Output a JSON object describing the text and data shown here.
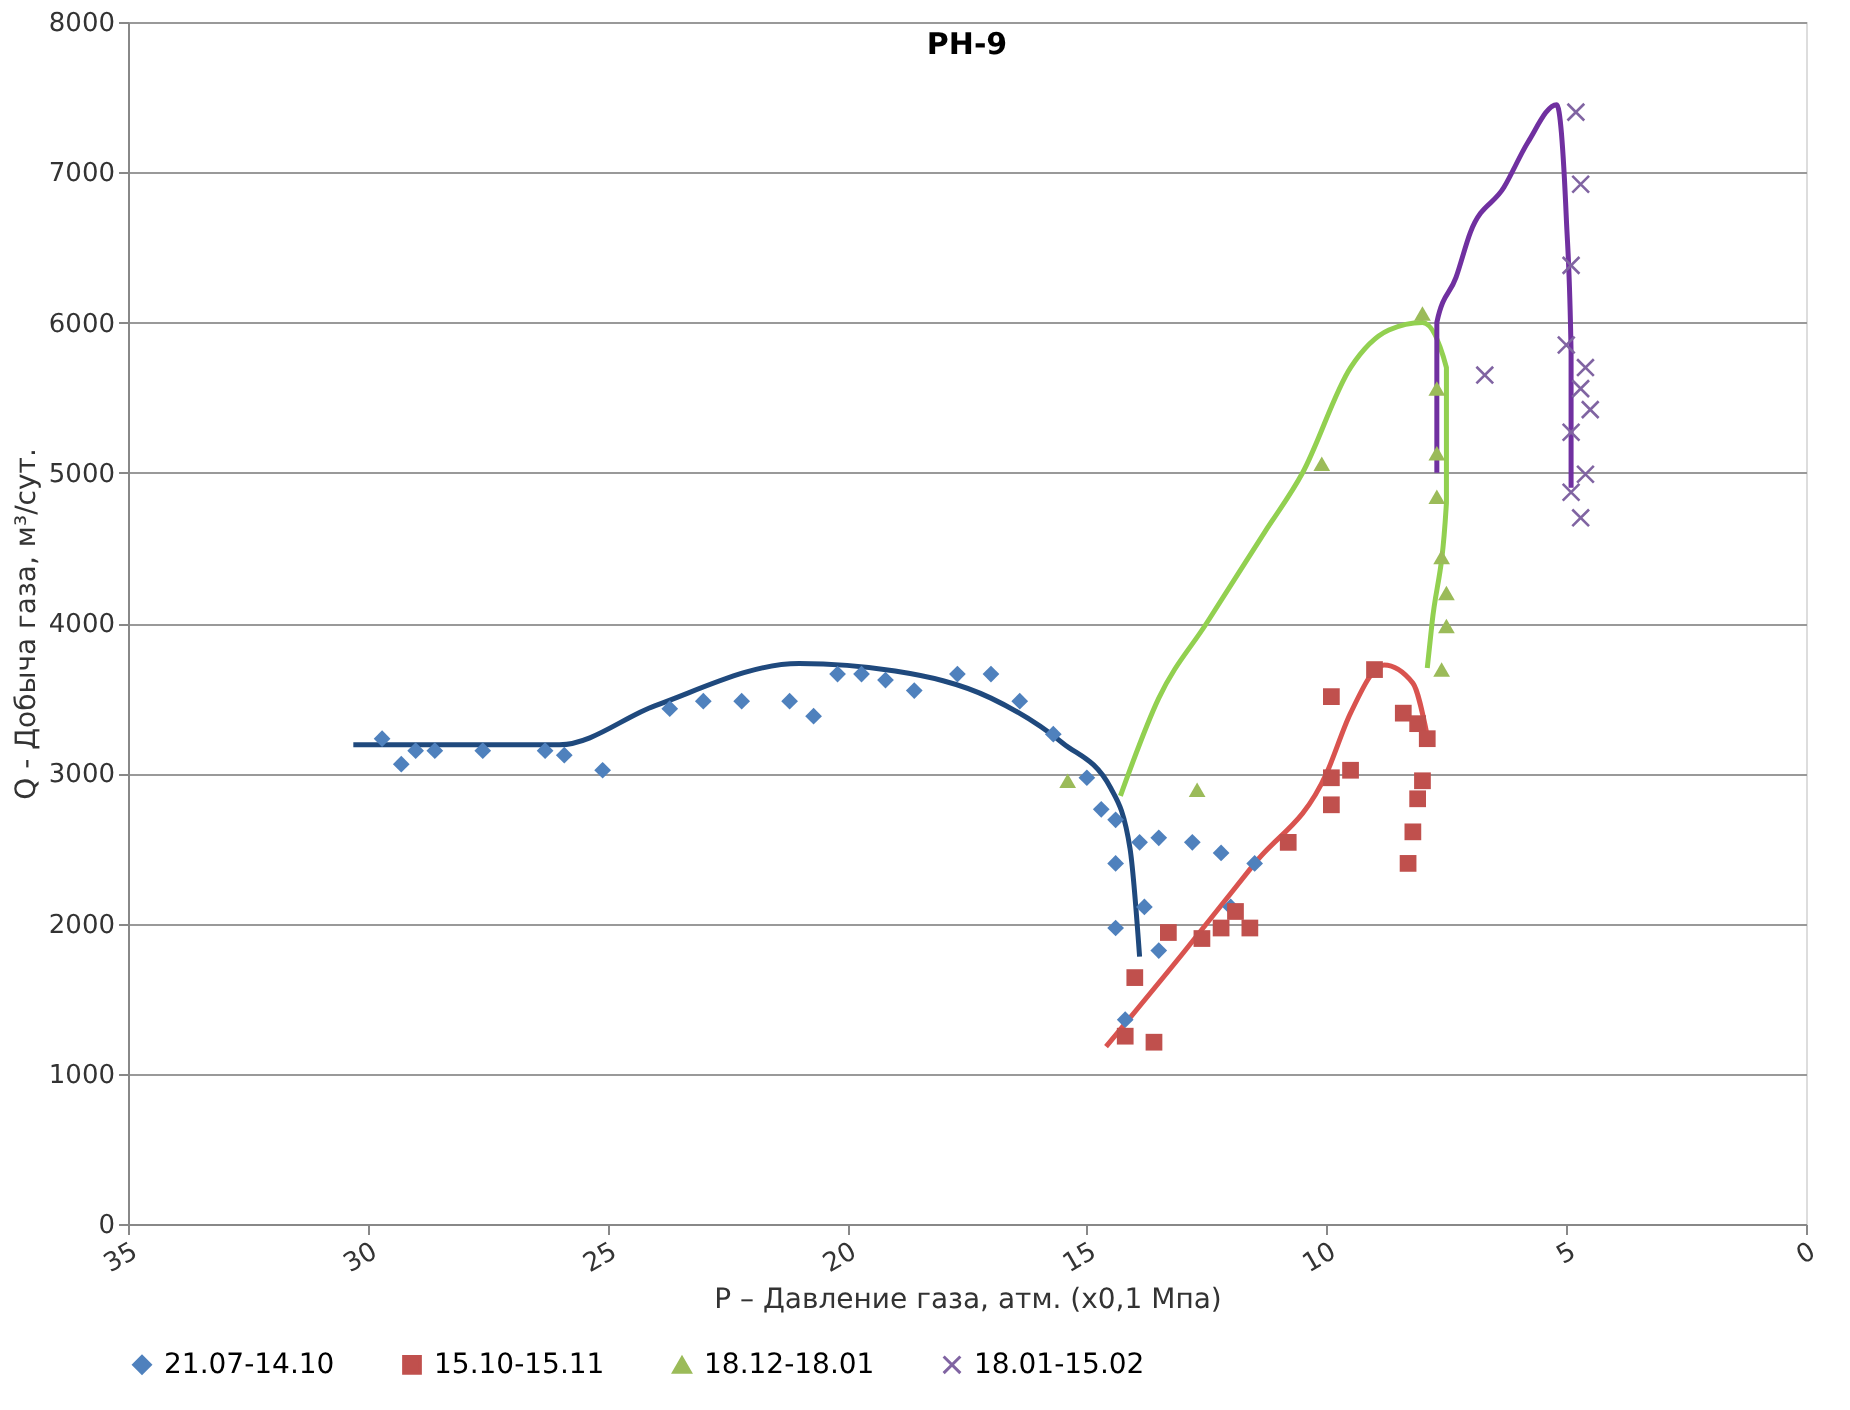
{
  "chart_data": {
    "type": "scatter",
    "title": "РН-9",
    "xlabel": "P – Давление газа, атм. (x0,1 Мпа)",
    "ylabel": "Q - Добыча газа, м³/сут.",
    "xlim": [
      35,
      0
    ],
    "xticks": [
      35,
      30,
      25,
      20,
      15,
      10,
      5,
      0
    ],
    "ylim": [
      0,
      8000
    ],
    "yticks": [
      0,
      1000,
      2000,
      3000,
      4000,
      5000,
      6000,
      7000,
      8000
    ],
    "grid": "y",
    "legend": "bottom",
    "series": [
      {
        "name": "21.07-14.10",
        "marker": "diamond",
        "color": "#4f81bd",
        "x": [
          29.7,
          29.3,
          29.0,
          28.6,
          27.6,
          26.3,
          25.9,
          25.1,
          23.7,
          23.0,
          22.2,
          21.2,
          20.7,
          20.2,
          19.7,
          19.2,
          18.6,
          17.7,
          17.0,
          16.4,
          15.7,
          15.0,
          14.7,
          14.4,
          14.4,
          14.4,
          13.9,
          13.8,
          13.5,
          12.8,
          12.2,
          11.5,
          12.0,
          13.5,
          14.2
        ],
        "values": [
          3230,
          3060,
          3150,
          3150,
          3150,
          3150,
          3120,
          3020,
          3430,
          3480,
          3480,
          3480,
          3380,
          3660,
          3660,
          3620,
          3550,
          3660,
          3660,
          3480,
          3260,
          2970,
          2760,
          2690,
          2400,
          1970,
          2540,
          2110,
          2570,
          2540,
          2470,
          2400,
          2110,
          1820,
          1360
        ]
      },
      {
        "name": "15.10-15.11",
        "marker": "square",
        "color": "#c0504d",
        "x": [
          14.0,
          14.2,
          13.6,
          13.3,
          12.6,
          12.2,
          11.9,
          11.6,
          10.8,
          9.9,
          9.9,
          9.5,
          9.9,
          9.0,
          8.4,
          8.1,
          8.3,
          8.2,
          8.1,
          8.0,
          7.9
        ],
        "values": [
          1640,
          1250,
          1210,
          1940,
          1900,
          1970,
          2080,
          1970,
          2540,
          2790,
          2970,
          3020,
          3510,
          3690,
          3400,
          3330,
          2400,
          2610,
          2830,
          2950,
          3230
        ]
      },
      {
        "name": "18.12-18.01",
        "marker": "triangle",
        "color": "#9bbb59",
        "x": [
          15.4,
          12.7,
          10.1,
          8.0,
          7.7,
          7.7,
          7.7,
          7.6,
          7.5,
          7.5,
          7.6
        ],
        "values": [
          2950,
          2890,
          5060,
          6060,
          5560,
          5130,
          4840,
          4440,
          4200,
          3980,
          3690
        ]
      },
      {
        "name": "18.01-15.02",
        "marker": "cross",
        "color": "#8064a2",
        "x": [
          6.7,
          4.8,
          4.7,
          4.9,
          5.0,
          4.7,
          4.5,
          4.9,
          4.6,
          4.9,
          4.7,
          4.6
        ],
        "values": [
          5650,
          7400,
          6920,
          6380,
          5850,
          5560,
          5420,
          5270,
          5700,
          4870,
          4700,
          4990
        ]
      },
      {
        "type": "line",
        "color": "#1f497d",
        "x": [
          30.3,
          26.0,
          24.0,
          21.0,
          19.0,
          17.0,
          15.5,
          14.5,
          14.1,
          13.9
        ],
        "values": [
          3190,
          3190,
          3450,
          3730,
          3680,
          3500,
          3200,
          2900,
          2500,
          1780
        ]
      },
      {
        "type": "line",
        "color": "#d9534f",
        "x": [
          14.6,
          13.0,
          11.5,
          10.0,
          9.5,
          8.8,
          8.2,
          7.9
        ],
        "values": [
          1180,
          1800,
          2400,
          3000,
          3400,
          3720,
          3600,
          3250
        ]
      },
      {
        "type": "line",
        "color": "#92d050",
        "x": [
          14.3,
          13.5,
          12.5,
          11.3,
          10.5,
          9.5,
          8.7,
          8.0,
          7.5,
          7.5,
          7.8,
          7.9
        ],
        "values": [
          2850,
          3500,
          4000,
          4600,
          5000,
          5700,
          5950,
          6000,
          5700,
          4800,
          4000,
          3700
        ]
      },
      {
        "type": "line",
        "color": "#7030a0",
        "x": [
          7.7,
          7.7,
          7.3,
          7.0,
          6.3,
          5.8,
          5.2,
          5.0,
          4.9,
          4.9
        ],
        "values": [
          5000,
          6000,
          6300,
          6600,
          6900,
          7200,
          7450,
          6700,
          5800,
          4900
        ]
      }
    ]
  }
}
